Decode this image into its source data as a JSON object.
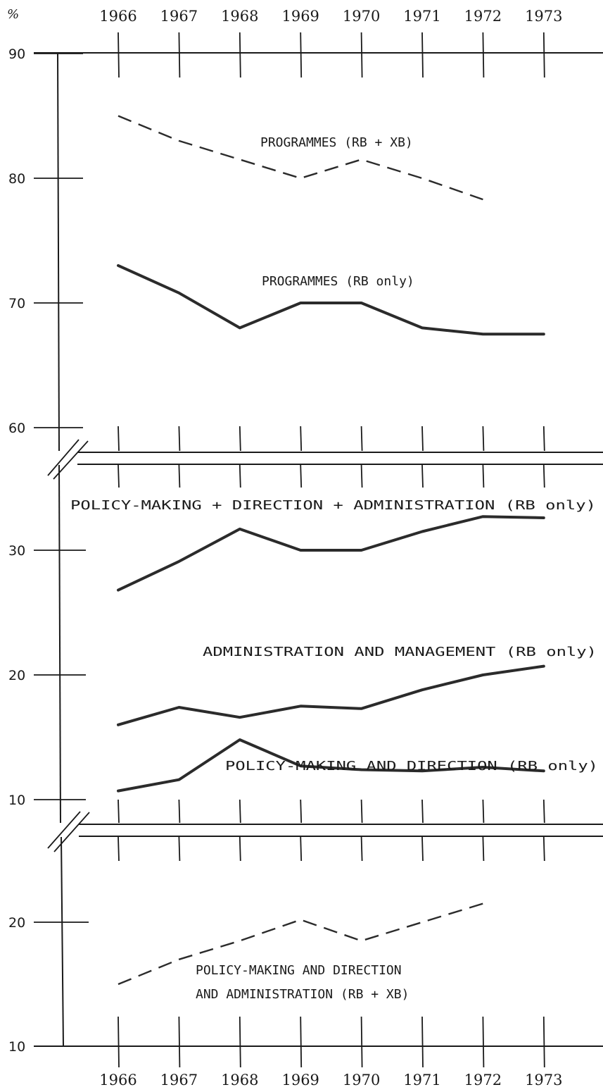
{
  "chart_data": {
    "type": "line",
    "y_unit": "%",
    "x_top": [
      "1966",
      "1967",
      "1968",
      "1969",
      "1970",
      "1971",
      "1972",
      "1973"
    ],
    "x_bottom": [
      "1966",
      "1967",
      "1968",
      "1969",
      "1970",
      "1971",
      "1972",
      "1973"
    ],
    "panels": [
      {
        "ylim": [
          60,
          90
        ],
        "yticks": [
          "90",
          "80",
          "70",
          "60"
        ],
        "series": [
          {
            "name": "PROGRAMMES (RB + XB)",
            "style": "dashed",
            "x": [
              "1966",
              "1967",
              "1968",
              "1969",
              "1970",
              "1971",
              "1972"
            ],
            "values": [
              85,
              83,
              81.5,
              80,
              81.5,
              80,
              78.3
            ]
          },
          {
            "name": "PROGRAMMES (RB only)",
            "style": "solid",
            "x": [
              "1966",
              "1967",
              "1968",
              "1969",
              "1970",
              "1971",
              "1972",
              "1973"
            ],
            "values": [
              73,
              70.8,
              68,
              70,
              70,
              68,
              67.5,
              67.5
            ]
          }
        ]
      },
      {
        "ylim": [
          10,
          35
        ],
        "yticks": [
          "30",
          "20",
          "10"
        ],
        "series": [
          {
            "name": "POLICY-MAKING + DIRECTION + ADMINISTRATION (RB only)",
            "style": "solid",
            "x": [
              "1966",
              "1967",
              "1968",
              "1969",
              "1970",
              "1971",
              "1972",
              "1973"
            ],
            "values": [
              26.8,
              29.1,
              31.7,
              30.0,
              30.0,
              31.5,
              32.7,
              32.6
            ]
          },
          {
            "name": "ADMINISTRATION AND MANAGEMENT (RB only)",
            "style": "solid",
            "x": [
              "1966",
              "1967",
              "1968",
              "1969",
              "1970",
              "1971",
              "1972",
              "1973"
            ],
            "values": [
              16.0,
              17.4,
              16.6,
              17.5,
              17.3,
              18.8,
              20.0,
              20.7
            ]
          },
          {
            "name": "POLICY-MAKING AND DIRECTION (RB only)",
            "style": "solid",
            "x": [
              "1966",
              "1967",
              "1968",
              "1969",
              "1970",
              "1971",
              "1972",
              "1973"
            ],
            "values": [
              10.7,
              11.6,
              14.8,
              12.7,
              12.4,
              12.3,
              12.6,
              12.3
            ]
          }
        ]
      },
      {
        "ylim": [
          10,
          25
        ],
        "yticks": [
          "20",
          "10"
        ],
        "series": [
          {
            "name": "POLICY-MAKING AND DIRECTION AND ADMINISTRATION (RB + XB)",
            "style": "dashed",
            "x": [
              "1966",
              "1967",
              "1968",
              "1969",
              "1970",
              "1971",
              "1972"
            ],
            "values": [
              15.0,
              17.0,
              18.5,
              20.2,
              18.5,
              20.0,
              21.5
            ]
          }
        ]
      }
    ],
    "annotations": {
      "prog_rbxb": "PROGRAMMES (RB + XB)",
      "prog_rb": "PROGRAMMES (RB only)",
      "pda": "POLICY-MAKING + DIRECTION + ADMINISTRATION (RB only)",
      "adm": "ADMINISTRATION AND MANAGEMENT (RB only)",
      "pmd": "POLICY-MAKING AND DIRECTION (RB only)",
      "pmda_line1": "POLICY-MAKING AND DIRECTION",
      "pmda_line2": "AND ADMINISTRATION (RB + XB)"
    }
  }
}
